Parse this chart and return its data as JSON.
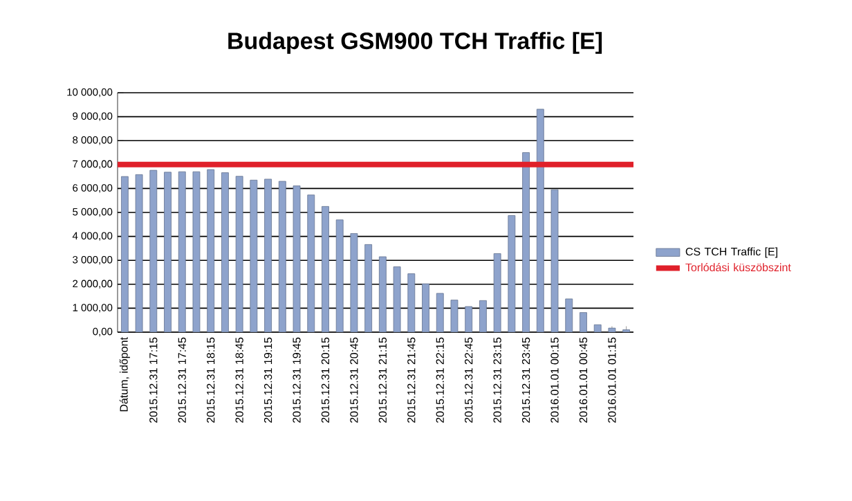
{
  "chart_data": {
    "type": "bar",
    "title": "Budapest GSM900 TCH Traffic [E]",
    "categories": [
      "Dátum, időpont",
      null,
      "2015.12.31 17:15",
      null,
      "2015.12.31 17:45",
      null,
      "2015.12.31 18:15",
      null,
      "2015.12.31 18:45",
      null,
      "2015.12.31 19:15",
      null,
      "2015.12.31 19:45",
      null,
      "2015.12.31 20:15",
      null,
      "2015.12.31 20:45",
      null,
      "2015.12.31 21:15",
      null,
      "2015.12.31 21:45",
      null,
      "2015.12.31 22:15",
      null,
      "2015.12.31 22:45",
      null,
      "2015.12.31 23:15",
      null,
      "2015.12.31 23:45",
      null,
      "2016.01.01 00:15",
      null,
      "2016.01.01 00:45",
      null,
      "2016.01.01 01:15",
      null
    ],
    "series": [
      {
        "name": "CS TCH Traffic [E]",
        "color": "#8ea3cc",
        "values": [
          6500,
          6580,
          6760,
          6680,
          6700,
          6700,
          6790,
          6660,
          6510,
          6350,
          6390,
          6300,
          6110,
          5730,
          5250,
          4690,
          4120,
          3660,
          3150,
          2730,
          2440,
          2020,
          1620,
          1340,
          1070,
          1320,
          3280,
          4870,
          7500,
          9310,
          5950,
          1390,
          820,
          310,
          170,
          100
        ]
      }
    ],
    "ylim": [
      0,
      10000
    ],
    "yticks": [
      {
        "value": 0,
        "label": "0,00"
      },
      {
        "value": 1000,
        "label": "1 000,00"
      },
      {
        "value": 2000,
        "label": "2 000,00"
      },
      {
        "value": 3000,
        "label": "3 000,00"
      },
      {
        "value": 4000,
        "label": "4 000,00"
      },
      {
        "value": 5000,
        "label": "5 000,00"
      },
      {
        "value": 6000,
        "label": "6 000,00"
      },
      {
        "value": 7000,
        "label": "7 000,00"
      },
      {
        "value": 8000,
        "label": "8 000,00"
      },
      {
        "value": 9000,
        "label": "9 000,00"
      },
      {
        "value": 10000,
        "label": "10 000,00"
      }
    ],
    "ref_lines": [
      {
        "axis": "y",
        "value": 7000,
        "label": "Torlódási küszöbszint",
        "color": "#e0202a"
      }
    ],
    "grid": "y",
    "legend": "right"
  }
}
